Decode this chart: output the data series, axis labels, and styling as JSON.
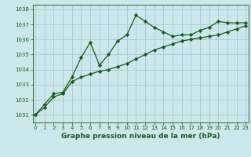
{
  "title": "Graphe pression niveau de la mer (hPa)",
  "bg_color": "#cce8ec",
  "line_color": "#1a5c1a",
  "grid_color": "#aacdd4",
  "x_values": [
    0,
    1,
    2,
    3,
    4,
    5,
    6,
    7,
    8,
    9,
    10,
    11,
    12,
    13,
    14,
    15,
    16,
    17,
    18,
    19,
    20,
    21,
    22,
    23
  ],
  "y_series1": [
    1031.0,
    1031.7,
    1032.4,
    1032.5,
    1033.5,
    1034.8,
    1035.8,
    1034.3,
    1035.0,
    1035.9,
    1036.3,
    1037.6,
    1037.2,
    1036.8,
    1036.5,
    1036.2,
    1036.3,
    1036.3,
    1036.6,
    1036.8,
    1037.2,
    1037.1,
    1037.1,
    1037.1
  ],
  "y_series2": [
    1031.0,
    1031.5,
    1032.2,
    1032.4,
    1033.2,
    1033.5,
    1033.7,
    1033.9,
    1034.0,
    1034.2,
    1034.4,
    1034.7,
    1035.0,
    1035.3,
    1035.5,
    1035.7,
    1035.9,
    1036.0,
    1036.1,
    1036.2,
    1036.3,
    1036.5,
    1036.7,
    1036.9
  ],
  "ylim": [
    1030.5,
    1038.3
  ],
  "xlim": [
    -0.3,
    23.3
  ],
  "yticks": [
    1031,
    1032,
    1033,
    1034,
    1035,
    1036,
    1037,
    1038
  ],
  "xticks": [
    0,
    1,
    2,
    3,
    4,
    5,
    6,
    7,
    8,
    9,
    10,
    11,
    12,
    13,
    14,
    15,
    16,
    17,
    18,
    19,
    20,
    21,
    22,
    23
  ],
  "marker": "D",
  "markersize": 2.2,
  "linewidth": 0.9,
  "title_fontsize": 6.5,
  "tick_fontsize": 5.0,
  "title_color": "#1a5c1a",
  "axis_color": "#1a5c1a"
}
